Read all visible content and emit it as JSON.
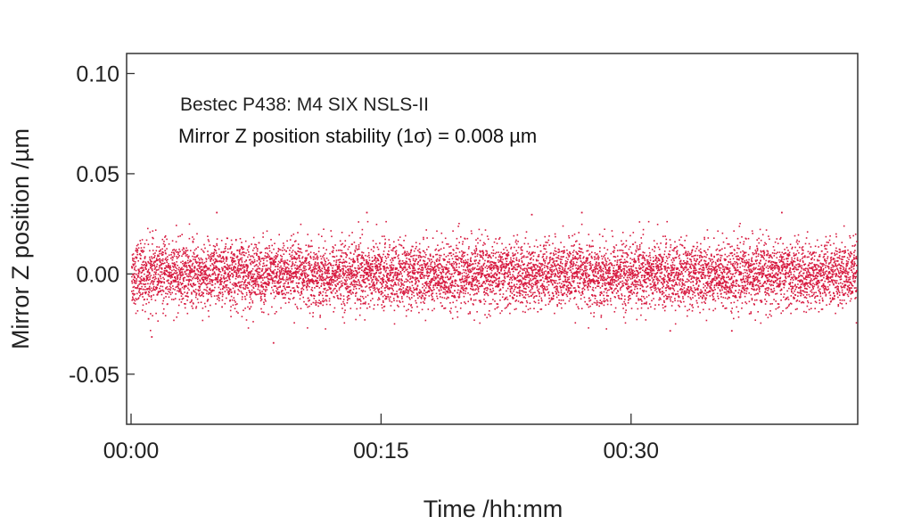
{
  "chart_data": {
    "type": "scatter",
    "xlabel": "Time /hh:mm",
    "ylabel": "Mirror Z position /µm",
    "x_range_minutes": [
      0,
      43.6
    ],
    "ylim": [
      -0.075,
      0.11
    ],
    "x_ticks": [
      {
        "value": 0,
        "label": "00:00"
      },
      {
        "value": 15,
        "label": "00:15"
      },
      {
        "value": 30,
        "label": "00:30"
      }
    ],
    "y_ticks": [
      {
        "value": 0.1,
        "label": "0.10"
      },
      {
        "value": 0.05,
        "label": "0.05"
      },
      {
        "value": 0.0,
        "label": "0.00"
      },
      {
        "value": -0.05,
        "label": "-0.05"
      }
    ],
    "annotations": [
      "Bestec P438: M4 SIX NSLS-II",
      "Mirror Z position stability (1σ) = 0.008 µm"
    ],
    "series": [
      {
        "color": "#d7193f",
        "std_dev": 0.008,
        "mean": 0.0,
        "x_start": 0,
        "x_end": 43.5,
        "samples": [
          {
            "x": 0.0,
            "y": 0.004
          },
          {
            "x": 1.0,
            "y": -0.022
          },
          {
            "x": 1.2,
            "y": -0.031
          },
          {
            "x": 2.0,
            "y": 0.012
          },
          {
            "x": 5.1,
            "y": 0.031
          },
          {
            "x": 8.5,
            "y": -0.034
          },
          {
            "x": 14.1,
            "y": 0.031
          },
          {
            "x": 20.0,
            "y": -0.003
          },
          {
            "x": 24.0,
            "y": 0.03
          },
          {
            "x": 27.0,
            "y": 0.031
          },
          {
            "x": 32.3,
            "y": -0.028
          },
          {
            "x": 36.0,
            "y": -0.028
          },
          {
            "x": 39.0,
            "y": 0.031
          },
          {
            "x": 43.5,
            "y": 0.002
          }
        ]
      }
    ]
  }
}
